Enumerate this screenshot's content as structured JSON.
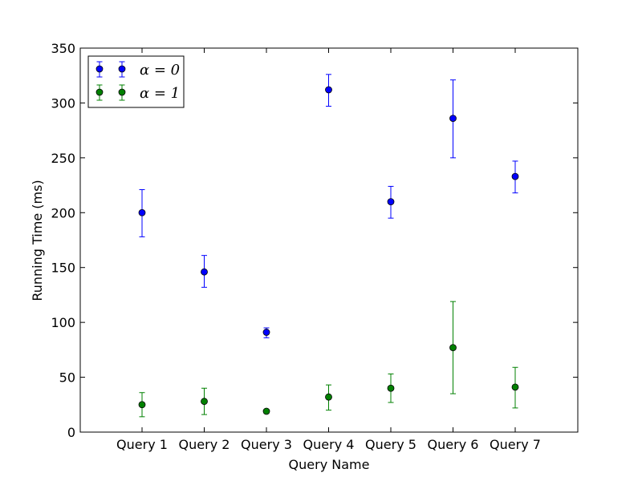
{
  "chart_data": {
    "type": "scatter",
    "title": "",
    "xlabel": "Query Name",
    "ylabel": "Running Time (ms)",
    "categories": [
      "Query 1",
      "Query 2",
      "Query 3",
      "Query 4",
      "Query 5",
      "Query 6",
      "Query 7"
    ],
    "ylim": [
      0,
      350
    ],
    "yticks": [
      0,
      50,
      100,
      150,
      200,
      250,
      300,
      350
    ],
    "ytick_labels": [
      "0",
      "50",
      "100",
      "150",
      "200",
      "250",
      "300",
      "350"
    ],
    "grid": false,
    "legend_position": "top-left",
    "series": [
      {
        "name": "α = 0",
        "legend_label": "α = 0",
        "color": "#0000ff",
        "values": [
          200,
          146,
          91,
          312,
          210,
          286,
          233
        ],
        "err_low": [
          178,
          132,
          86,
          297,
          195,
          250,
          218
        ],
        "err_high": [
          221,
          161,
          95,
          326,
          224,
          321,
          247
        ]
      },
      {
        "name": "α = 1",
        "legend_label": "α = 1",
        "color": "#008000",
        "values": [
          25,
          28,
          19,
          32,
          40,
          77,
          41
        ],
        "err_low": [
          14,
          16,
          17,
          20,
          27,
          35,
          22
        ],
        "err_high": [
          36,
          40,
          20,
          43,
          53,
          119,
          59
        ]
      }
    ]
  }
}
